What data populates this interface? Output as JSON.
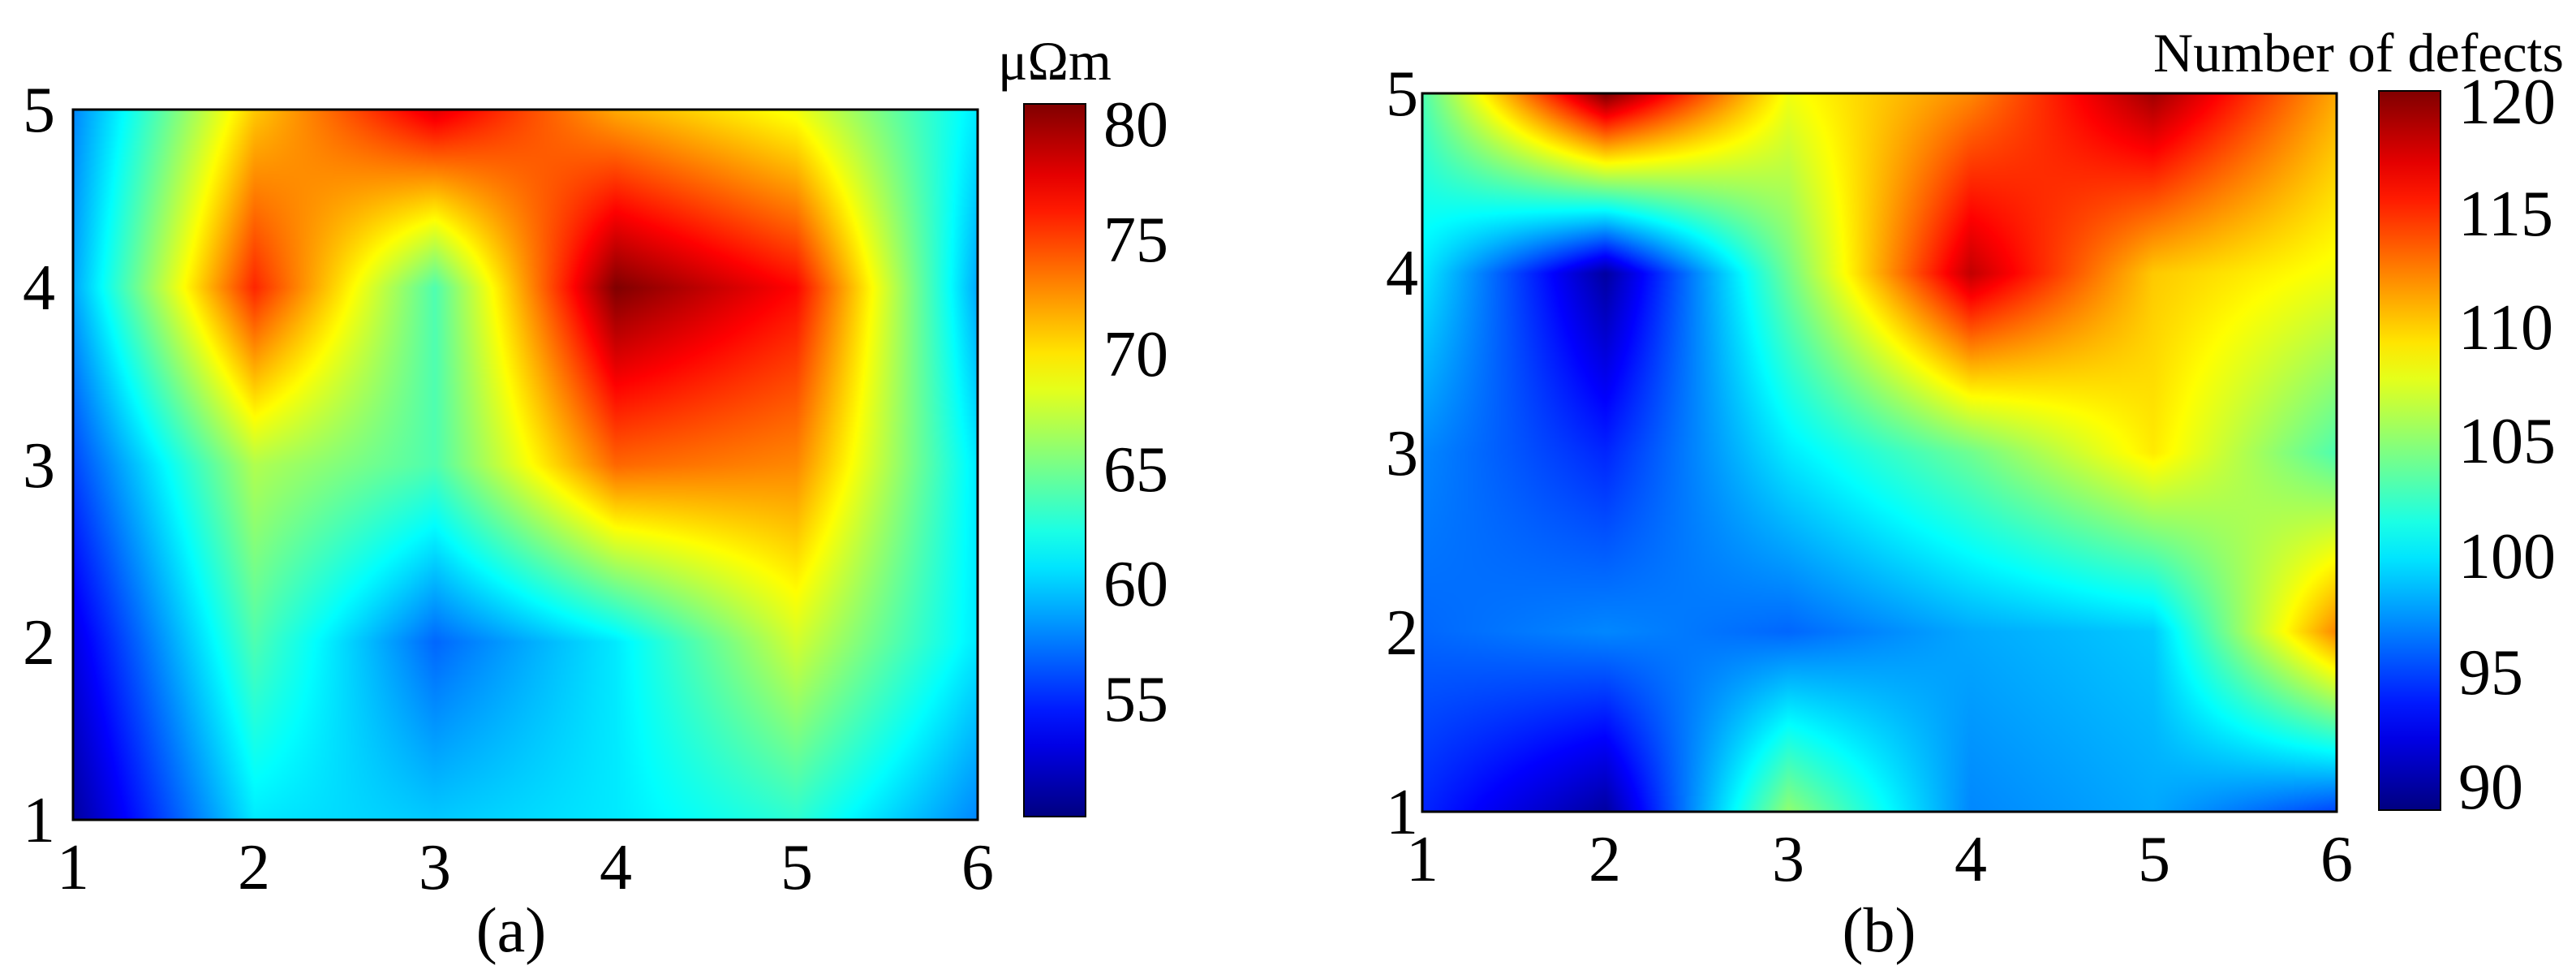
{
  "chart_data": [
    {
      "type": "heatmap",
      "panel_label": "(a)",
      "colorbar_label": "μΩm",
      "x": [
        1,
        2,
        3,
        4,
        5,
        6
      ],
      "y": [
        1,
        2,
        3,
        4,
        5
      ],
      "xticks": [
        "1",
        "2",
        "3",
        "4",
        "5",
        "6"
      ],
      "yticks": [
        "1",
        "2",
        "3",
        "4",
        "5"
      ],
      "xlim": [
        1,
        6
      ],
      "ylim": [
        1,
        5
      ],
      "clim": [
        50,
        81
      ],
      "colorbar_ticks": [
        "80",
        "75",
        "70",
        "65",
        "60",
        "55"
      ],
      "colorbar_tick_values": [
        80,
        75,
        70,
        65,
        60,
        55
      ],
      "colormap": "jet",
      "z": [
        [
          51,
          61,
          60,
          61,
          63,
          58
        ],
        [
          53,
          64,
          57,
          61,
          68,
          61
        ],
        [
          56,
          67,
          64,
          74,
          73,
          61
        ],
        [
          59,
          76,
          64,
          81,
          77,
          59
        ],
        [
          58,
          71,
          78,
          72,
          69,
          61
        ]
      ]
    },
    {
      "type": "heatmap",
      "panel_label": "(b)",
      "colorbar_label": "Number of defects",
      "x": [
        1,
        2,
        3,
        4,
        5,
        6
      ],
      "y": [
        1,
        2,
        3,
        4,
        5
      ],
      "xticks": [
        "1",
        "2",
        "3",
        "4",
        "5",
        "6"
      ],
      "yticks": [
        "1",
        "2",
        "3",
        "4",
        "5"
      ],
      "xlim": [
        1,
        6
      ],
      "ylim": [
        1,
        5
      ],
      "clim": [
        90,
        121
      ],
      "colorbar_ticks": [
        "120",
        "115",
        "110",
        "105",
        "100",
        "95",
        "90"
      ],
      "colorbar_tick_values": [
        120,
        115,
        110,
        105,
        100,
        95,
        90
      ],
      "colormap": "jet",
      "z": [
        [
          95,
          91,
          106,
          98,
          99,
          96
        ],
        [
          97,
          98,
          97,
          99,
          100,
          113
        ],
        [
          98,
          95,
          101,
          105,
          110,
          104
        ],
        [
          101,
          91,
          105,
          119,
          111,
          109
        ],
        [
          104,
          121,
          109,
          113,
          120,
          112
        ]
      ]
    }
  ]
}
